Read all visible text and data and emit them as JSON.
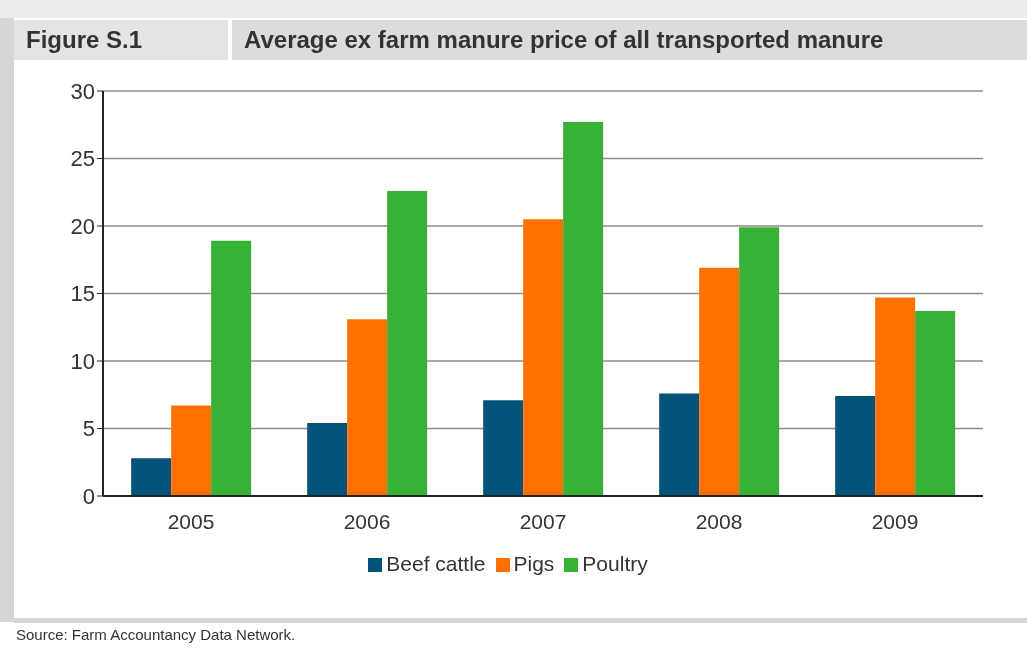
{
  "chart_data": {
    "type": "bar",
    "title": "Average ex farm manure price of all transported manure",
    "annotations": [
      "Figure S.1",
      "Source: Farm Accountancy Data Network."
    ],
    "categories": [
      "2005",
      "2006",
      "2007",
      "2008",
      "2009"
    ],
    "series": [
      {
        "name": "Beef cattle",
        "color": "#03527a",
        "values": [
          2.8,
          5.4,
          7.1,
          7.6,
          7.4
        ]
      },
      {
        "name": "Pigs",
        "color": "#ff7000",
        "values": [
          6.7,
          13.1,
          20.5,
          16.9,
          14.7
        ]
      },
      {
        "name": "Poultry",
        "color": "#38b236",
        "values": [
          18.9,
          22.6,
          27.7,
          19.9,
          13.7
        ]
      }
    ],
    "ylim": [
      0,
      30
    ],
    "yticks": [
      0,
      5,
      10,
      15,
      20,
      25,
      30
    ],
    "grid": "y",
    "legend": "bottom"
  }
}
